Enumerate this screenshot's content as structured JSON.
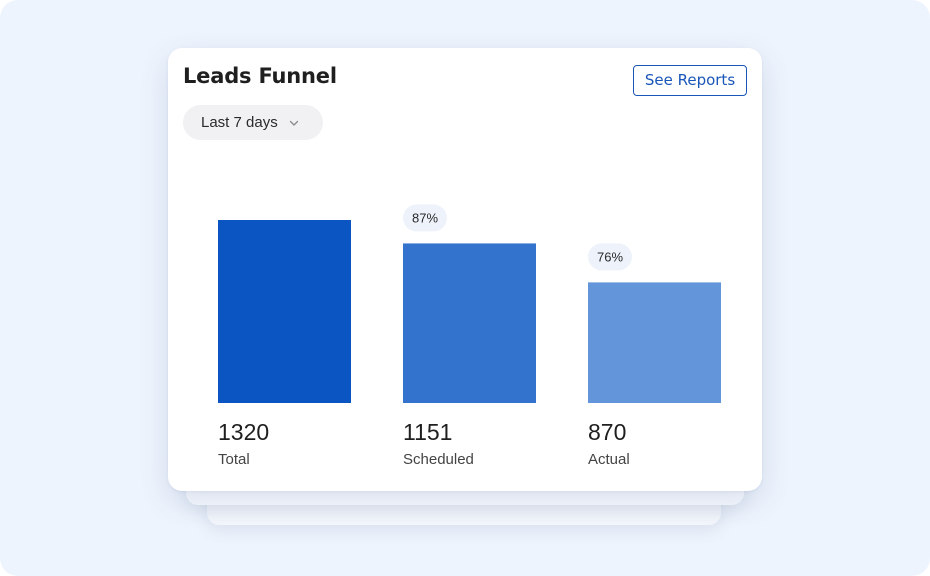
{
  "card": {
    "title": "Leads Funnel",
    "see_reports_label": "See Reports",
    "range_filter": {
      "selected": "Last 7 days",
      "icon": "chevron-down-icon"
    }
  },
  "chart_data": {
    "type": "bar",
    "categories": [
      "Total",
      "Scheduled",
      "Actual"
    ],
    "values": [
      1320,
      1151,
      870
    ],
    "value_labels": [
      "1320",
      "1151",
      "870"
    ],
    "conversion_badges": [
      "",
      "87%",
      "76%"
    ],
    "colors": [
      "#0a55c2",
      "#3473cd",
      "#6395da"
    ],
    "ylim": [
      0,
      1320
    ],
    "grid": false,
    "legend": "none",
    "title": "",
    "xlabel": "",
    "ylabel": ""
  },
  "colors": {
    "accent": "#1a56b8",
    "background": "#eef4fd",
    "card": "#ffffff",
    "badge_bg": "#eef3fb",
    "text_primary": "#1f1f1f",
    "text_secondary": "#444444"
  }
}
